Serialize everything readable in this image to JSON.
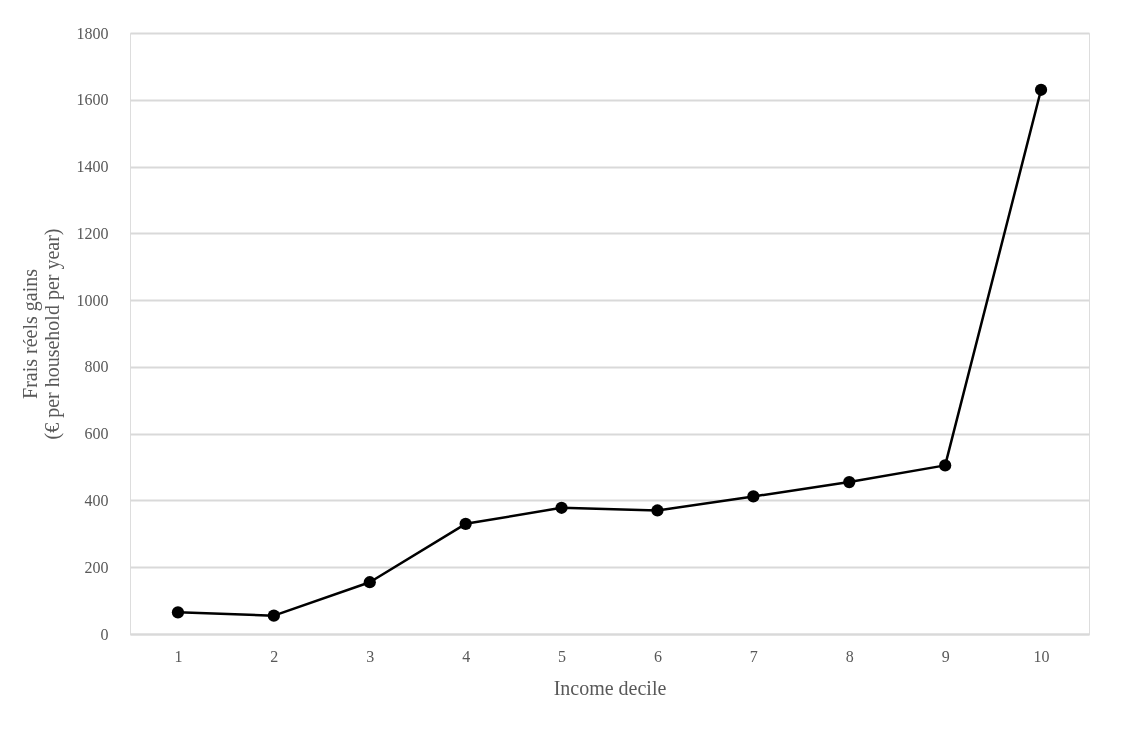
{
  "chart_data": {
    "type": "line",
    "xlabel": "Income decile",
    "ylabel": "Frais réels gains\n(€ per household per year)",
    "categories": [
      "1",
      "2",
      "3",
      "4",
      "5",
      "6",
      "7",
      "8",
      "9",
      "10"
    ],
    "series": [
      {
        "color": "#000000",
        "values": [
          65,
          55,
          155,
          330,
          378,
          370,
          412,
          455,
          505,
          1630
        ]
      }
    ],
    "ylim": [
      0,
      1800
    ],
    "yticks": [
      0,
      200,
      400,
      600,
      800,
      1000,
      1200,
      1400,
      1600,
      1800
    ],
    "grid": "y",
    "marker": "circle",
    "line_style": "solid"
  }
}
